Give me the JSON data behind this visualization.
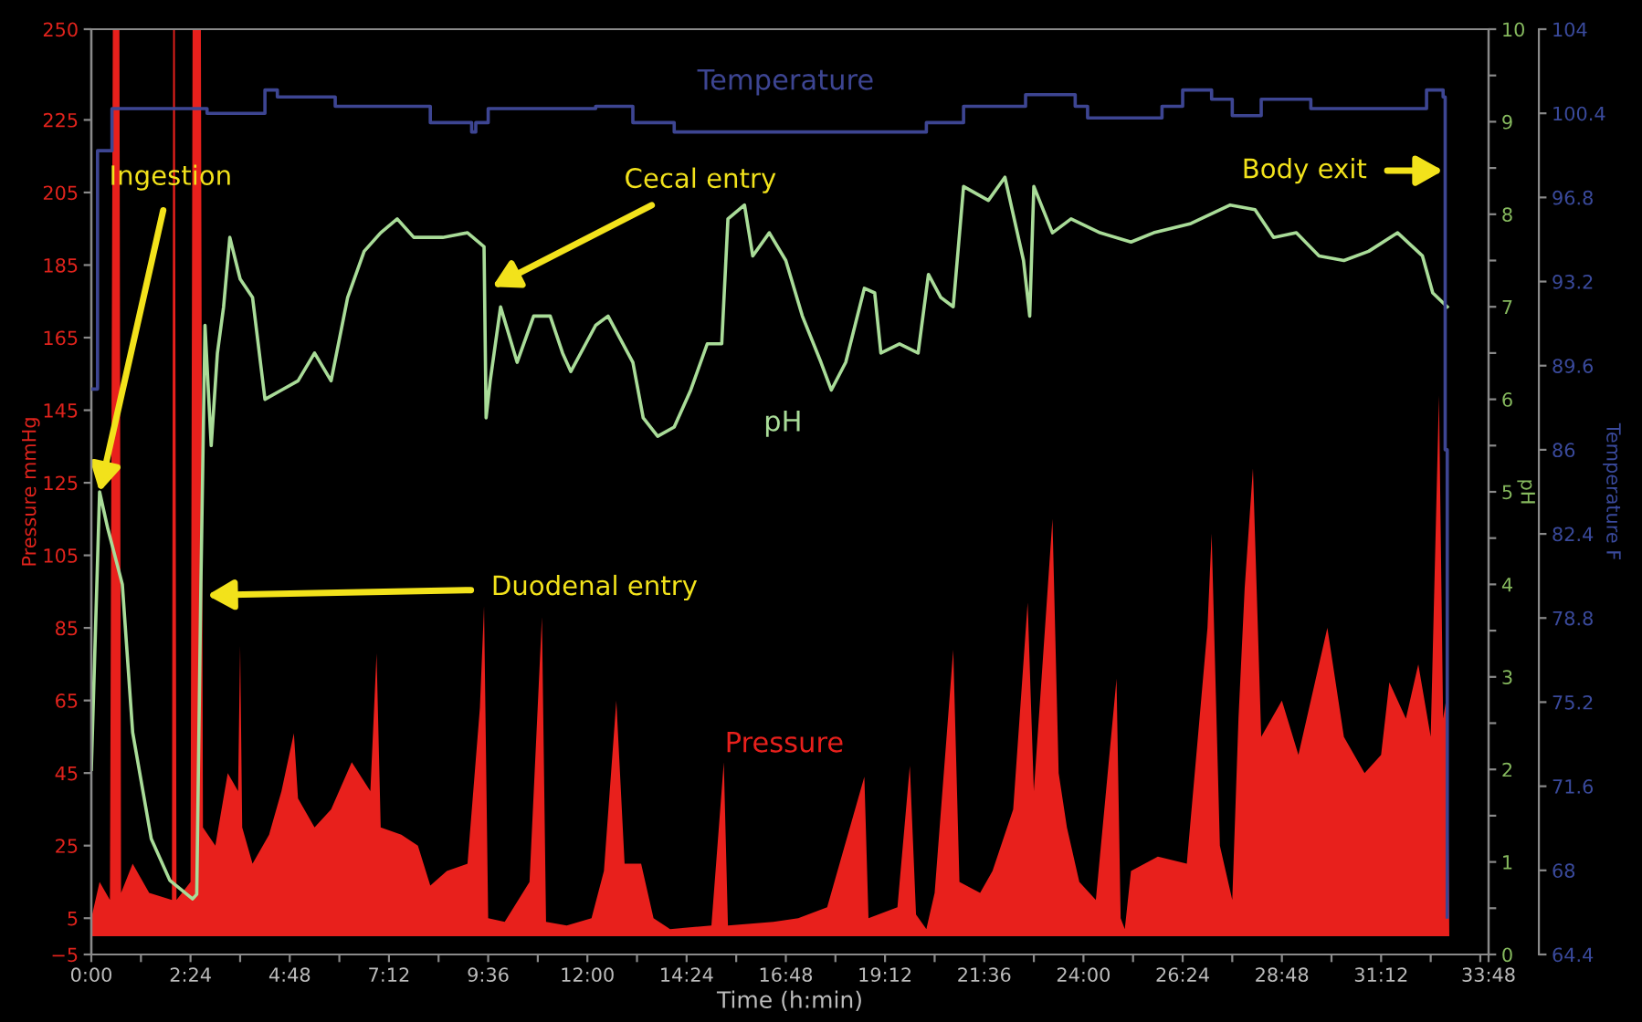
{
  "chart_data": {
    "type": "line",
    "xlabel": "Time (h:min)",
    "ylabel": "Pressure mmHg",
    "y2label": "pH",
    "y3label": "Temperature F",
    "xlim": [
      0,
      33.8
    ],
    "ylim": [
      -5,
      250
    ],
    "y2lim": [
      0,
      10
    ],
    "y3lim": [
      64.4,
      104
    ],
    "xticks": [
      {
        "value": 0,
        "label": "0:00"
      },
      {
        "value": 1.2,
        "label": null
      },
      {
        "value": 2.4,
        "label": "2:24"
      },
      {
        "value": 3.6,
        "label": null
      },
      {
        "value": 4.8,
        "label": "4:48"
      },
      {
        "value": 6.0,
        "label": null
      },
      {
        "value": 7.2,
        "label": "7:12"
      },
      {
        "value": 8.4,
        "label": null
      },
      {
        "value": 9.6,
        "label": "9:36"
      },
      {
        "value": 10.8,
        "label": null
      },
      {
        "value": 12.0,
        "label": "12:00"
      },
      {
        "value": 13.2,
        "label": null
      },
      {
        "value": 14.4,
        "label": "14:24"
      },
      {
        "value": 15.6,
        "label": null
      },
      {
        "value": 16.8,
        "label": "16:48"
      },
      {
        "value": 18.0,
        "label": null
      },
      {
        "value": 19.2,
        "label": "19:12"
      },
      {
        "value": 20.4,
        "label": null
      },
      {
        "value": 21.6,
        "label": "21:36"
      },
      {
        "value": 22.8,
        "label": null
      },
      {
        "value": 24.0,
        "label": "24:00"
      },
      {
        "value": 25.2,
        "label": null
      },
      {
        "value": 26.4,
        "label": "26:24"
      },
      {
        "value": 27.6,
        "label": null
      },
      {
        "value": 28.8,
        "label": "28:48"
      },
      {
        "value": 30.0,
        "label": null
      },
      {
        "value": 31.2,
        "label": "31:12"
      },
      {
        "value": 32.4,
        "label": null
      },
      {
        "value": 33.6,
        "label": null
      },
      {
        "value": 33.8,
        "label": "33:48"
      }
    ],
    "yticks": [
      {
        "value": -5,
        "label": "−5"
      },
      5,
      25,
      45,
      65,
      85,
      105,
      125,
      145,
      165,
      185,
      205,
      225,
      250
    ],
    "y2ticks": [
      0,
      {
        "value": 0.5,
        "label": null
      },
      1,
      {
        "value": 1.5,
        "label": null
      },
      2,
      {
        "value": 2.5,
        "label": null
      },
      3,
      {
        "value": 3.5,
        "label": null
      },
      4,
      {
        "value": 4.5,
        "label": null
      },
      5,
      {
        "value": 5.5,
        "label": null
      },
      6,
      {
        "value": 6.5,
        "label": null
      },
      7,
      {
        "value": 7.5,
        "label": null
      },
      8,
      {
        "value": 8.5,
        "label": null
      },
      9,
      {
        "value": 9.5,
        "label": null
      },
      10
    ],
    "y3ticks": [
      64.4,
      68,
      71.6,
      75.2,
      78.8,
      82.4,
      86,
      89.6,
      93.2,
      96.8,
      100.4,
      104
    ],
    "grid": false,
    "legend": false,
    "series": [
      {
        "name": "Pressure",
        "type": "area",
        "color": "#e8201c",
        "x": [
          0,
          0.2,
          0.45,
          0.52,
          0.68,
          0.72,
          1.0,
          1.4,
          1.95,
          1.98,
          2.02,
          2.06,
          2.4,
          2.45,
          2.65,
          2.7,
          3.0,
          3.3,
          3.55,
          3.6,
          3.65,
          3.9,
          4.3,
          4.6,
          4.9,
          5.0,
          5.4,
          5.8,
          6.3,
          6.75,
          6.9,
          7.0,
          7.5,
          7.9,
          8.2,
          8.6,
          9.1,
          9.4,
          9.5,
          9.6,
          10.0,
          10.6,
          10.9,
          11.0,
          11.5,
          12.1,
          12.4,
          12.7,
          12.9,
          13.3,
          13.6,
          14.0,
          15.0,
          15.3,
          15.4,
          16.5,
          17.1,
          17.8,
          18.7,
          18.8,
          19.5,
          19.8,
          19.95,
          20.2,
          20.4,
          20.85,
          21.0,
          21.5,
          21.8,
          22.3,
          22.65,
          22.8,
          23.25,
          23.4,
          23.6,
          23.9,
          24.3,
          24.8,
          24.9,
          25.0,
          25.15,
          25.8,
          26.5,
          27.0,
          27.1,
          27.3,
          27.6,
          27.75,
          27.9,
          28.1,
          28.3,
          28.8,
          29.2,
          29.6,
          29.9,
          30.3,
          30.8,
          31.2,
          31.4,
          31.8,
          32.1,
          32.4,
          32.6,
          32.7,
          32.8,
          32.85
        ],
        "values": [
          5,
          15,
          10,
          250,
          250,
          12,
          20,
          12,
          10,
          250,
          250,
          10,
          15,
          250,
          250,
          30,
          25,
          45,
          40,
          80,
          30,
          20,
          28,
          40,
          56,
          38,
          30,
          35,
          48,
          40,
          78,
          30,
          28,
          25,
          14,
          18,
          20,
          63,
          91,
          5,
          4,
          15,
          88,
          4,
          3,
          5,
          18,
          65,
          20,
          20,
          5,
          2,
          3,
          48,
          3,
          4,
          5,
          8,
          44,
          5,
          8,
          47,
          6,
          2,
          12,
          79,
          15,
          12,
          18,
          35,
          92,
          40,
          115,
          45,
          30,
          15,
          10,
          71,
          5,
          2,
          18,
          22,
          20,
          85,
          111,
          25,
          10,
          60,
          96,
          129,
          55,
          65,
          50,
          70,
          85,
          55,
          45,
          50,
          70,
          60,
          75,
          55,
          149,
          60,
          67,
          0
        ]
      },
      {
        "name": "pH",
        "axis": "y2",
        "color": "#a9dc98",
        "x": [
          0.0,
          0.1,
          0.2,
          0.4,
          0.75,
          1.0,
          1.45,
          1.9,
          2.45,
          2.55,
          2.65,
          2.75,
          2.9,
          3.05,
          3.2,
          3.35,
          3.6,
          3.9,
          4.2,
          4.6,
          5.0,
          5.4,
          5.8,
          6.2,
          6.6,
          7.0,
          7.4,
          7.8,
          8.5,
          9.1,
          9.5,
          9.55,
          9.65,
          9.9,
          10.3,
          10.7,
          11.1,
          11.4,
          11.6,
          12.2,
          12.5,
          13.1,
          13.35,
          13.7,
          14.1,
          14.5,
          14.9,
          15.25,
          15.4,
          15.8,
          16.0,
          16.4,
          16.8,
          17.2,
          17.65,
          17.9,
          18.25,
          18.7,
          18.95,
          19.1,
          19.55,
          20.0,
          20.25,
          20.55,
          20.85,
          21.1,
          21.7,
          22.1,
          22.55,
          22.7,
          22.8,
          23.25,
          23.7,
          24.4,
          25.15,
          25.7,
          26.6,
          27.55,
          28.15,
          28.6,
          29.15,
          29.7,
          30.3,
          30.9,
          31.6,
          32.2,
          32.45,
          32.8
        ],
        "values": [
          2.0,
          3.5,
          5.0,
          4.6,
          4.0,
          2.4,
          1.25,
          0.8,
          0.6,
          0.65,
          4.0,
          6.8,
          5.5,
          6.5,
          7.0,
          7.75,
          7.3,
          7.1,
          6.0,
          6.1,
          6.2,
          6.5,
          6.2,
          7.1,
          7.6,
          7.8,
          7.95,
          7.75,
          7.75,
          7.8,
          7.65,
          5.8,
          6.2,
          7.0,
          6.4,
          6.9,
          6.9,
          6.5,
          6.3,
          6.8,
          6.9,
          6.4,
          5.8,
          5.6,
          5.7,
          6.1,
          6.6,
          6.6,
          7.95,
          8.1,
          7.55,
          7.8,
          7.5,
          6.9,
          6.4,
          6.1,
          6.4,
          7.2,
          7.15,
          6.5,
          6.6,
          6.5,
          7.35,
          7.1,
          7.0,
          8.3,
          8.15,
          8.4,
          7.5,
          6.9,
          8.3,
          7.8,
          7.95,
          7.8,
          7.7,
          7.8,
          7.9,
          8.1,
          8.05,
          7.75,
          7.8,
          7.55,
          7.5,
          7.6,
          7.8,
          7.55,
          7.15,
          7.0
        ]
      },
      {
        "name": "Temperature",
        "type": "step",
        "axis": "y3",
        "color": "#3d4592",
        "x": [
          0.0,
          0.15,
          0.5,
          2.6,
          2.8,
          4.1,
          4.2,
          4.5,
          5.6,
          5.9,
          7.9,
          8.2,
          9.0,
          9.2,
          9.3,
          9.6,
          12.2,
          12.8,
          13.1,
          13.9,
          14.1,
          20.0,
          20.2,
          21.1,
          22.6,
          22.8,
          23.8,
          24.1,
          25.0,
          25.9,
          26.4,
          27.1,
          27.6,
          28.3,
          29.1,
          29.5,
          31.7,
          32.3,
          32.6,
          32.7,
          32.75,
          32.8
        ],
        "values": [
          88.6,
          98.8,
          100.6,
          100.6,
          100.4,
          100.4,
          101.4,
          101.1,
          101.1,
          100.7,
          100.7,
          100.0,
          100.0,
          99.6,
          100.0,
          100.6,
          100.7,
          100.7,
          100.0,
          100.0,
          99.6,
          99.6,
          100.0,
          100.7,
          101.2,
          101.2,
          100.7,
          100.2,
          100.2,
          100.7,
          101.4,
          101.0,
          100.3,
          101.0,
          101.0,
          100.6,
          100.6,
          101.4,
          101.4,
          101.1,
          86,
          66
        ]
      }
    ],
    "annotations": [
      {
        "text": "Ingestion",
        "x": 0.2,
        "y": 122.5
      },
      {
        "text": "Duodenal entry",
        "x": 2.8,
        "y": 94
      },
      {
        "text": "Cecal entry",
        "x": 9.7,
        "y": 179
      },
      {
        "text": "Body exit",
        "x": 32.7,
        "y": 211
      }
    ]
  }
}
